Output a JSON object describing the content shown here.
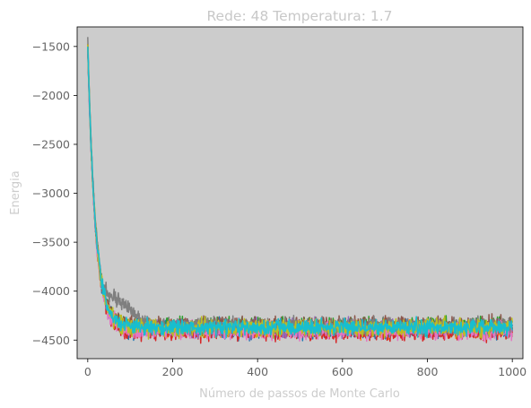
{
  "chart_data": {
    "type": "line",
    "title": "Rede: 48 Temperatura: 1.7",
    "xlabel": "Número de passos de Monte Carlo",
    "ylabel": "Energia",
    "xlim": [
      -25,
      1025
    ],
    "ylim": [
      -4690,
      -1300
    ],
    "xticks": [
      0,
      200,
      400,
      600,
      800,
      1000
    ],
    "yticks": [
      -1500,
      -2000,
      -2500,
      -3000,
      -3500,
      -4000,
      -4500
    ],
    "grid": false,
    "legend": "none",
    "plot_background": "#cccccc",
    "series": [
      {
        "color": "#1f77b4",
        "start": -1500,
        "equilibrium": -4390,
        "fluctuation": 55
      },
      {
        "color": "#ff7f0e",
        "start": -1480,
        "equilibrium": -4385,
        "fluctuation": 55
      },
      {
        "color": "#2ca02c",
        "start": -1520,
        "equilibrium": -4360,
        "fluctuation": 55
      },
      {
        "color": "#d62728",
        "start": -1500,
        "equilibrium": -4420,
        "fluctuation": 50
      },
      {
        "color": "#9467bd",
        "start": -1530,
        "equilibrium": -4380,
        "fluctuation": 55
      },
      {
        "color": "#8c564b",
        "start": -1490,
        "equilibrium": -4350,
        "fluctuation": 55
      },
      {
        "color": "#e377c2",
        "start": -1510,
        "equilibrium": -4400,
        "fluctuation": 55
      },
      {
        "color": "#7f7f7f",
        "start": -1420,
        "equilibrium": -4355,
        "fluctuation": 50,
        "plateau": {
          "x": [
            40,
            150
          ],
          "y": -4000
        }
      },
      {
        "color": "#bcbd22",
        "start": -1500,
        "equilibrium": -4375,
        "fluctuation": 55
      },
      {
        "color": "#17becf",
        "start": -1490,
        "equilibrium": -4370,
        "fluctuation": 50
      }
    ],
    "x_range": [
      0,
      1000
    ],
    "relaxation_steps": 18
  }
}
